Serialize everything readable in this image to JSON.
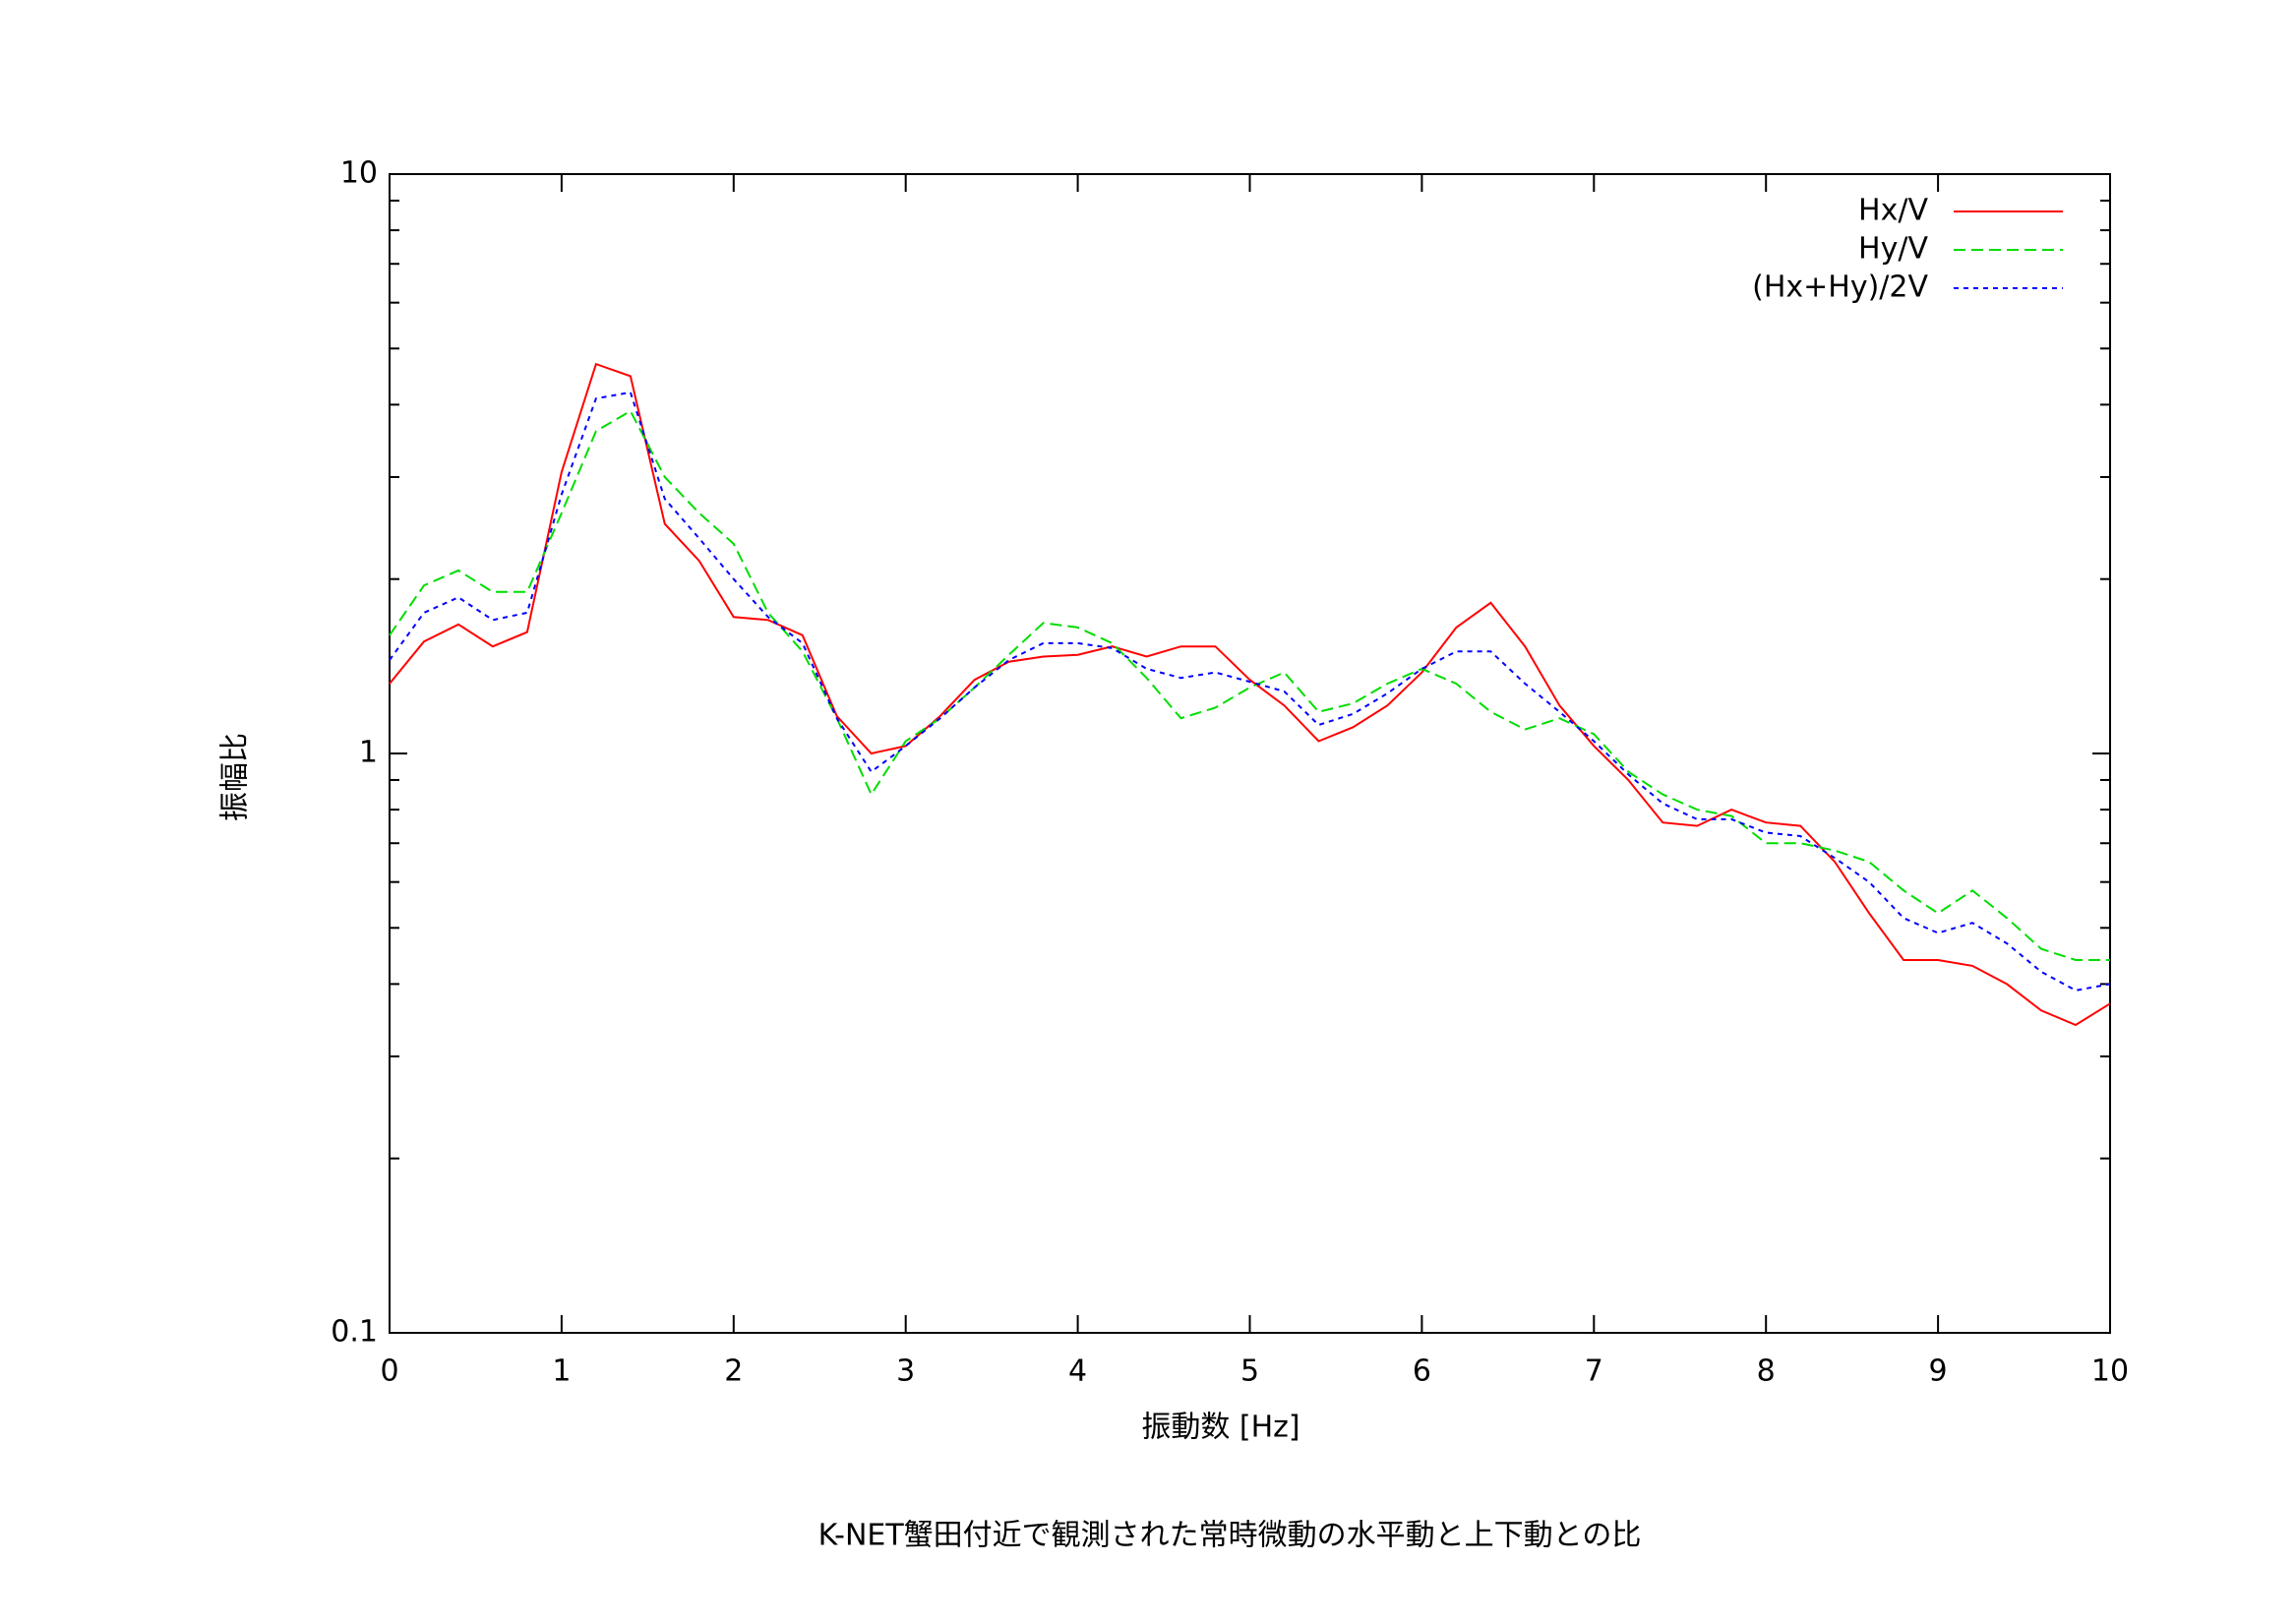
{
  "chart_data": {
    "type": "line",
    "title": "K-NET蟹田付近で観測された常時微動の水平動と上下動との比",
    "xlabel": "振動数 [Hz]",
    "ylabel": "振幅比",
    "x": [
      0,
      0.2,
      0.4,
      0.6,
      0.8,
      1,
      1.2,
      1.4,
      1.6,
      1.8,
      2,
      2.2,
      2.4,
      2.6,
      2.8,
      3,
      3.2,
      3.4,
      3.6,
      3.8,
      4,
      4.2,
      4.4,
      4.6,
      4.8,
      5,
      5.2,
      5.4,
      5.6,
      5.8,
      6,
      6.2,
      6.4,
      6.6,
      6.8,
      7,
      7.2,
      7.4,
      7.6,
      7.8,
      8,
      8.2,
      8.4,
      8.6,
      8.8,
      9,
      9.2,
      9.4,
      9.6,
      9.8,
      10
    ],
    "series": [
      {
        "name": "Hx/V",
        "color": "#ff0000",
        "dash": "solid",
        "values": [
          1.32,
          1.56,
          1.67,
          1.53,
          1.62,
          3.06,
          4.7,
          4.48,
          2.49,
          2.15,
          1.72,
          1.7,
          1.6,
          1.16,
          1.0,
          1.03,
          1.16,
          1.34,
          1.44,
          1.47,
          1.48,
          1.53,
          1.47,
          1.53,
          1.53,
          1.34,
          1.21,
          1.05,
          1.11,
          1.21,
          1.38,
          1.65,
          1.82,
          1.53,
          1.21,
          1.03,
          0.9,
          0.76,
          0.75,
          0.8,
          0.76,
          0.75,
          0.65,
          0.53,
          0.44,
          0.44,
          0.43,
          0.4,
          0.36,
          0.34,
          0.37
        ]
      },
      {
        "name": "Hy/V",
        "color": "#00dd00",
        "dash": "dashed",
        "values": [
          1.6,
          1.95,
          2.07,
          1.9,
          1.9,
          2.6,
          3.6,
          3.9,
          3.0,
          2.6,
          2.3,
          1.75,
          1.5,
          1.15,
          0.85,
          1.05,
          1.15,
          1.3,
          1.48,
          1.68,
          1.65,
          1.55,
          1.35,
          1.15,
          1.2,
          1.3,
          1.38,
          1.18,
          1.22,
          1.32,
          1.4,
          1.32,
          1.18,
          1.1,
          1.15,
          1.08,
          0.93,
          0.85,
          0.8,
          0.78,
          0.7,
          0.7,
          0.68,
          0.65,
          0.58,
          0.53,
          0.58,
          0.52,
          0.46,
          0.44,
          0.44
        ]
      },
      {
        "name": "(Hx+Hy)/2V",
        "color": "#0000ff",
        "dash": "dotted",
        "values": [
          1.45,
          1.75,
          1.86,
          1.7,
          1.75,
          2.8,
          4.1,
          4.2,
          2.75,
          2.35,
          2.0,
          1.72,
          1.55,
          1.15,
          0.93,
          1.03,
          1.15,
          1.3,
          1.45,
          1.55,
          1.55,
          1.52,
          1.4,
          1.35,
          1.38,
          1.33,
          1.28,
          1.12,
          1.17,
          1.27,
          1.4,
          1.5,
          1.5,
          1.32,
          1.18,
          1.05,
          0.92,
          0.82,
          0.77,
          0.77,
          0.73,
          0.72,
          0.66,
          0.6,
          0.52,
          0.49,
          0.51,
          0.47,
          0.42,
          0.39,
          0.4
        ]
      }
    ],
    "xlim": [
      0,
      10
    ],
    "xticks": [
      0,
      1,
      2,
      3,
      4,
      5,
      6,
      7,
      8,
      9,
      10
    ],
    "ylim": [
      0.1,
      10
    ],
    "yticks": [
      0.1,
      1,
      10
    ],
    "yminorticks": [
      0.2,
      0.3,
      0.4,
      0.5,
      0.6,
      0.7,
      0.8,
      0.9,
      2,
      3,
      4,
      5,
      6,
      7,
      8,
      9
    ],
    "yscale": "log",
    "grid": false,
    "legend": "top-right"
  }
}
